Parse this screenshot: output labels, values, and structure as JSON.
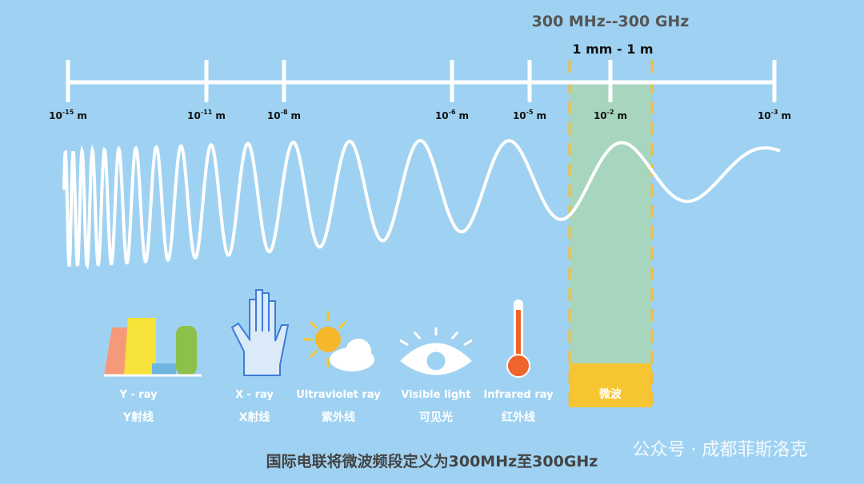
{
  "band": {
    "frequency": "300 MHz--300 GHz",
    "wavelength": "1 mm - 1 m",
    "name": "微波"
  },
  "scale": {
    "ticks": [
      {
        "base": "10",
        "exp": "-15",
        "unit": "m"
      },
      {
        "base": "10",
        "exp": "-11",
        "unit": "m"
      },
      {
        "base": "10",
        "exp": "-8",
        "unit": "m"
      },
      {
        "base": "10",
        "exp": "-6",
        "unit": "m"
      },
      {
        "base": "10",
        "exp": "-5",
        "unit": "m"
      },
      {
        "base": "10",
        "exp": "-2",
        "unit": "m"
      },
      {
        "base": "10",
        "exp": "-3",
        "unit": "m"
      }
    ]
  },
  "radiation": [
    {
      "en": "Y - ray",
      "zh": "Y射线"
    },
    {
      "en": "X - ray",
      "zh": "X射线"
    },
    {
      "en": "Ultraviolet ray",
      "zh": "紫外线"
    },
    {
      "en": "Visible light",
      "zh": "可见光"
    },
    {
      "en": "Infrared ray",
      "zh": "红外线"
    }
  ],
  "footer": {
    "caption": "国际电联将微波频段定义为300MHz至300GHz",
    "watermark": "公众号 · 成都菲斯洛克"
  }
}
